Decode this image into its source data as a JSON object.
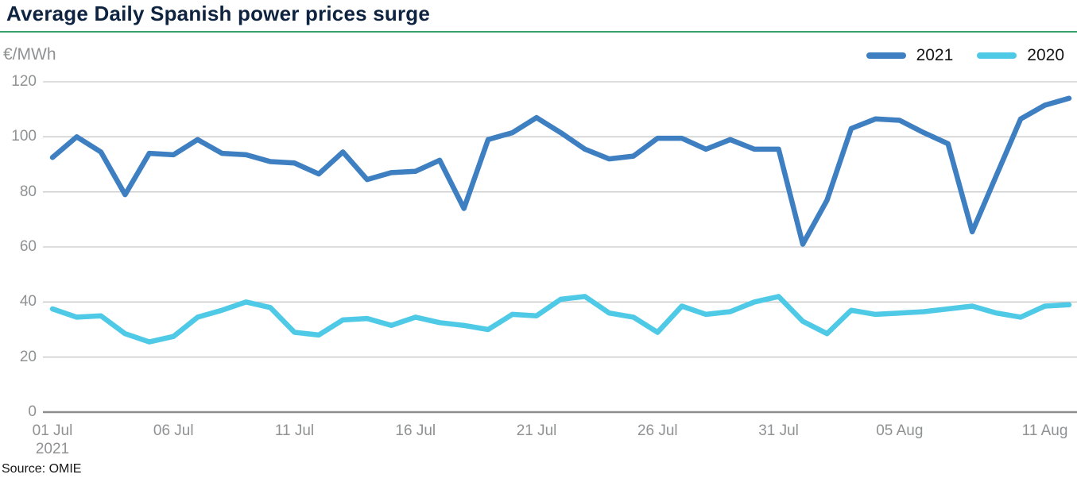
{
  "header": {
    "title": "Average Daily Spanish power prices surge"
  },
  "chart": {
    "unit_label": "€/MWh",
    "source": "Source: OMIE",
    "accent_rule_color": "#36a269",
    "title_color": "#0e2340",
    "axis_text_color": "#8f9193",
    "gridline_color": "#c9c9c9",
    "zero_line_color": "#8d8d8d"
  },
  "chart_data": {
    "type": "line",
    "title": "Average Daily Spanish power prices surge",
    "ylabel": "€/MWh",
    "xlabel": "",
    "ylim": [
      0,
      120
    ],
    "y_ticks": [
      0,
      20,
      40,
      60,
      80,
      100,
      120
    ],
    "grid": "horizontal",
    "legend_position": "top-right",
    "source": "Source: OMIE",
    "x": [
      "01 Jul",
      "02 Jul",
      "03 Jul",
      "04 Jul",
      "05 Jul",
      "06 Jul",
      "07 Jul",
      "08 Jul",
      "09 Jul",
      "10 Jul",
      "11 Jul",
      "12 Jul",
      "13 Jul",
      "14 Jul",
      "15 Jul",
      "16 Jul",
      "17 Jul",
      "18 Jul",
      "19 Jul",
      "20 Jul",
      "21 Jul",
      "22 Jul",
      "23 Jul",
      "24 Jul",
      "25 Jul",
      "26 Jul",
      "27 Jul",
      "28 Jul",
      "29 Jul",
      "30 Jul",
      "31 Jul",
      "01 Aug",
      "02 Aug",
      "03 Aug",
      "04 Aug",
      "05 Aug",
      "06 Aug",
      "07 Aug",
      "08 Aug",
      "09 Aug",
      "10 Aug",
      "11 Aug",
      "12 Aug"
    ],
    "x_ticks": [
      {
        "index": 0,
        "label": "01 Jul",
        "sublabel": "2021"
      },
      {
        "index": 5,
        "label": "06 Jul",
        "sublabel": ""
      },
      {
        "index": 10,
        "label": "11 Jul",
        "sublabel": ""
      },
      {
        "index": 15,
        "label": "16 Jul",
        "sublabel": ""
      },
      {
        "index": 20,
        "label": "21 Jul",
        "sublabel": ""
      },
      {
        "index": 25,
        "label": "26 Jul",
        "sublabel": ""
      },
      {
        "index": 30,
        "label": "31 Jul",
        "sublabel": ""
      },
      {
        "index": 35,
        "label": "05 Aug",
        "sublabel": ""
      },
      {
        "index": 41,
        "label": "11 Aug",
        "sublabel": ""
      }
    ],
    "series": [
      {
        "name": "2021",
        "color": "#3e7fc1",
        "values": [
          92.5,
          100,
          94.5,
          79,
          94,
          93.5,
          99,
          94,
          93.5,
          91,
          90.5,
          86.5,
          94.5,
          84.5,
          87,
          87.5,
          91.5,
          74,
          99,
          101.5,
          107,
          101.5,
          95.5,
          92,
          93,
          99.5,
          99.5,
          95.5,
          99,
          95.5,
          95.5,
          61,
          77,
          103,
          106.5,
          106,
          101.5,
          97.5,
          65.5,
          86,
          106.5,
          111.5,
          114
        ]
      },
      {
        "name": "2020",
        "color": "#4ec9e6",
        "values": [
          37.5,
          34.5,
          35,
          28.5,
          25.5,
          27.5,
          34.5,
          37,
          40,
          38,
          29,
          28,
          33.5,
          34,
          31.5,
          34.5,
          32.5,
          31.5,
          30,
          35.5,
          35,
          41,
          42,
          36,
          34.5,
          29,
          38.5,
          35.5,
          36.5,
          40,
          42,
          33,
          28.5,
          37,
          35.5,
          36,
          36.5,
          37.5,
          38.5,
          36,
          34.5,
          38.5,
          39
        ]
      }
    ]
  }
}
